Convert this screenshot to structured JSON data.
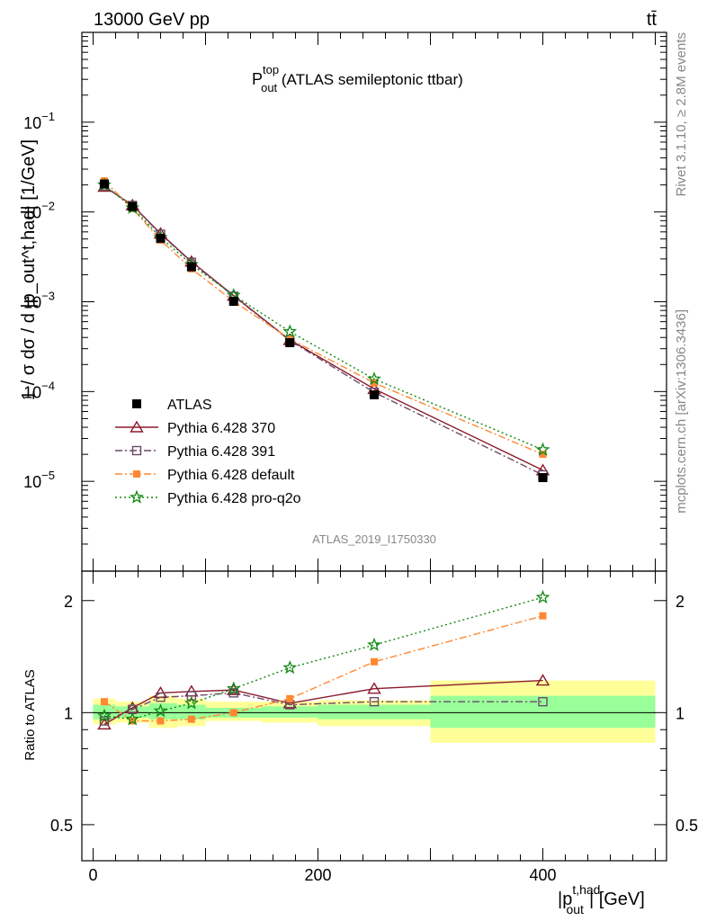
{
  "header": {
    "energy_label": "13000 GeV pp",
    "process_label": "tt̄"
  },
  "chart_data": [
    {
      "type": "line",
      "panel": "main",
      "title_main": "P",
      "title_sup": "top",
      "title_sub": "out",
      "title_rest": " (ATLAS semileptonic ttbar)",
      "ylabel": "1 / σ dσ / d |p_out^t,had| [1/GeV]",
      "yscale": "log",
      "ylim": [
        1e-06,
        1.0
      ],
      "xlim": [
        -10,
        510
      ],
      "ytick_labels": [
        {
          "v": 1e-05,
          "base": "10",
          "exp": "−5"
        },
        {
          "v": 0.0001,
          "base": "10",
          "exp": "−4"
        },
        {
          "v": 0.001,
          "base": "10",
          "exp": "−3"
        },
        {
          "v": 0.01,
          "base": "10",
          "exp": "−2"
        },
        {
          "v": 0.1,
          "base": "10",
          "exp": "−1"
        }
      ],
      "x": [
        10,
        35,
        60,
        87.5,
        125,
        175,
        250,
        400
      ],
      "series": [
        {
          "name": "ATLAS",
          "color": "#000000",
          "marker": "square-filled",
          "dash": "none",
          "values": [
            0.0205,
            0.0115,
            0.0051,
            0.00245,
            0.00101,
            0.00035,
            9.2e-05,
            1.1e-05
          ]
        },
        {
          "name": "Pythia 6.428 370",
          "color": "#8b1a2b",
          "marker": "triangle-open",
          "dash": "solid",
          "values": [
            0.0191,
            0.0119,
            0.00575,
            0.0028,
            0.00117,
            0.000375,
            0.000107,
            1.33e-05
          ]
        },
        {
          "name": "Pythia 6.428 391",
          "color": "#6b4a6a",
          "marker": "square-open",
          "dash": "dashdot",
          "values": [
            0.0195,
            0.0118,
            0.00565,
            0.00275,
            0.00115,
            0.00037,
            9.8e-05,
            1.18e-05
          ]
        },
        {
          "name": "Pythia 6.428 default",
          "color": "#ff8833",
          "marker": "square-small-filled",
          "dash": "dashdot",
          "values": [
            0.0222,
            0.0109,
            0.00485,
            0.00233,
            0.00101,
            0.000385,
            0.000125,
            2e-05
          ]
        },
        {
          "name": "Pythia 6.428 pro-q2o",
          "color": "#118811",
          "marker": "star-open",
          "dash": "dotted",
          "values": [
            0.02,
            0.0111,
            0.0052,
            0.0026,
            0.00118,
            0.000465,
            0.000138,
            2.25e-05
          ]
        }
      ],
      "watermark": "ATLAS_2019_I1750330",
      "side_label_top": "Rivet 3.1.10, ≥ 2.8M events",
      "side_label_bottom": "mcplots.cern.ch [arXiv:1306.3436]"
    },
    {
      "type": "line",
      "panel": "ratio",
      "ylabel": "Ratio to ATLAS",
      "xlabel_main": "|p",
      "xlabel_sup": "t,had",
      "xlabel_sub": "out",
      "xlabel_rest": "| [GeV]",
      "yscale": "log",
      "ylim": [
        0.4,
        2.4
      ],
      "xlim": [
        -10,
        510
      ],
      "yticks": [
        0.5,
        1,
        2
      ],
      "ytick_labels": [
        "0.5",
        "1",
        "2"
      ],
      "xticks": [
        0,
        200,
        400
      ],
      "xtick_labels": [
        "0",
        "200",
        "400"
      ],
      "uncertainty_bins": [
        {
          "x0": 0,
          "x1": 20,
          "inner": [
            0.96,
            1.05
          ],
          "outer": [
            0.93,
            1.09
          ]
        },
        {
          "x0": 20,
          "x1": 50,
          "inner": [
            0.97,
            1.04
          ],
          "outer": [
            0.94,
            1.07
          ]
        },
        {
          "x0": 50,
          "x1": 75,
          "inner": [
            0.96,
            1.06
          ],
          "outer": [
            0.91,
            1.11
          ]
        },
        {
          "x0": 75,
          "x1": 100,
          "inner": [
            0.96,
            1.05
          ],
          "outer": [
            0.92,
            1.09
          ]
        },
        {
          "x0": 100,
          "x1": 150,
          "inner": [
            0.97,
            1.03
          ],
          "outer": [
            0.95,
            1.07
          ]
        },
        {
          "x0": 150,
          "x1": 200,
          "inner": [
            0.97,
            1.04
          ],
          "outer": [
            0.94,
            1.07
          ]
        },
        {
          "x0": 200,
          "x1": 300,
          "inner": [
            0.96,
            1.05
          ],
          "outer": [
            0.92,
            1.08
          ]
        },
        {
          "x0": 300,
          "x1": 500,
          "inner": [
            0.91,
            1.11
          ],
          "outer": [
            0.83,
            1.22
          ]
        }
      ],
      "x": [
        10,
        35,
        60,
        87.5,
        125,
        175,
        250,
        400
      ],
      "series": [
        {
          "name": "Pythia 6.428 370",
          "color": "#8b1a2b",
          "marker": "triangle-open",
          "dash": "solid",
          "values": [
            0.93,
            1.03,
            1.13,
            1.14,
            1.15,
            1.06,
            1.16,
            1.22
          ]
        },
        {
          "name": "Pythia 6.428 391",
          "color": "#6b4a6a",
          "marker": "square-open",
          "dash": "dashdot",
          "values": [
            0.95,
            1.02,
            1.1,
            1.11,
            1.13,
            1.05,
            1.07,
            1.07
          ]
        },
        {
          "name": "Pythia 6.428 default",
          "color": "#ff8833",
          "marker": "square-small-filled",
          "dash": "dashdot",
          "values": [
            1.07,
            0.95,
            0.95,
            0.96,
            1.0,
            1.09,
            1.37,
            1.82
          ]
        },
        {
          "name": "Pythia 6.428 pro-q2o",
          "color": "#118811",
          "marker": "star-open",
          "dash": "dotted",
          "values": [
            0.98,
            0.96,
            1.01,
            1.06,
            1.16,
            1.32,
            1.52,
            2.04
          ]
        }
      ]
    }
  ]
}
